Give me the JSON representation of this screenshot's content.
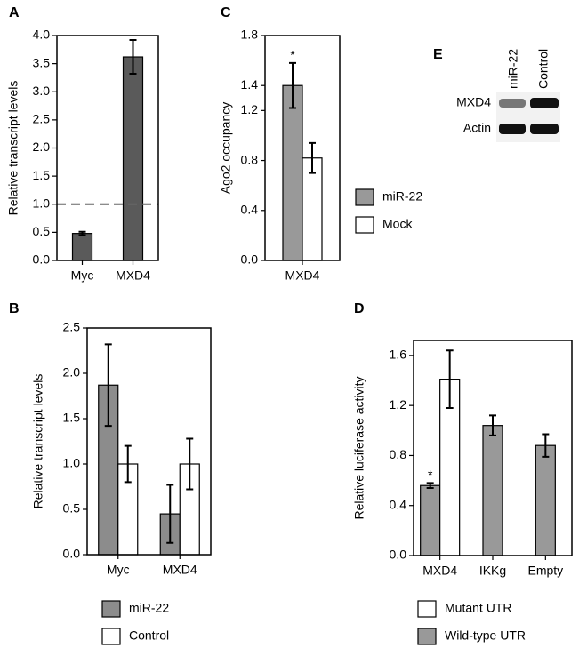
{
  "chart_data": [
    {
      "type": "bar",
      "panel_label": "A",
      "y_label": "Relative transcript levels",
      "categories": [
        "Myc",
        "MXD4"
      ],
      "series": [
        {
          "name": null,
          "color": "#5a5a5a",
          "values": [
            0.48,
            3.62
          ],
          "errors": [
            0.03,
            0.3
          ]
        }
      ],
      "reference_line": 1.0,
      "ylim": [
        0,
        4
      ],
      "yticks": [
        {
          "value": 0,
          "label": "0.0"
        },
        0.5,
        {
          "value": 1,
          "label": "1.0"
        },
        1.5,
        {
          "value": 2,
          "label": "2.0"
        },
        2.5,
        {
          "value": 3,
          "label": "3.0"
        },
        3.5,
        {
          "value": 4,
          "label": "4.0"
        }
      ]
    },
    {
      "type": "bar",
      "panel_label": "B",
      "y_label": "Relative transcript levels",
      "categories": [
        "Myc",
        "MXD4"
      ],
      "series": [
        {
          "name": "miR-22",
          "color": "#8c8c8c",
          "values": [
            1.87,
            0.45
          ],
          "errors": [
            0.45,
            0.32
          ]
        },
        {
          "name": "Control",
          "color": "#ffffff",
          "values": [
            1.0,
            1.0
          ],
          "errors": [
            0.2,
            0.28
          ]
        }
      ],
      "ylim": [
        0,
        2.5
      ],
      "yticks": [
        {
          "value": 0,
          "label": "0.0"
        },
        0.5,
        {
          "value": 1,
          "label": "1.0"
        },
        1.5,
        {
          "value": 2,
          "label": "2.0"
        },
        2.5
      ]
    },
    {
      "type": "bar",
      "panel_label": "C",
      "y_label": "Ago2 occupancy",
      "categories": [
        "MXD4"
      ],
      "series": [
        {
          "name": "miR-22",
          "color": "#999999",
          "values": [
            1.4
          ],
          "errors": [
            0.18
          ]
        },
        {
          "name": "Mock",
          "color": "#ffffff",
          "values": [
            0.82
          ],
          "errors": [
            0.12
          ]
        }
      ],
      "annotations": [
        {
          "text": "*",
          "category": "MXD4",
          "series": "miR-22"
        }
      ],
      "ylim": [
        0,
        1.8
      ],
      "yticks": [
        {
          "value": 0,
          "label": "0.0"
        },
        0.4,
        0.8,
        1.2,
        1.4,
        1.8
      ]
    },
    {
      "type": "bar",
      "panel_label": "D",
      "y_label": "Relative luciferase activity",
      "categories": [
        "MXD4",
        "IKKg",
        "Empty"
      ],
      "series": [
        {
          "name": "Wild-type UTR",
          "color": "#999999",
          "values": [
            0.56,
            1.04,
            0.88
          ],
          "errors": [
            0.02,
            0.08,
            0.09
          ]
        },
        {
          "name": "Mutant UTR",
          "color": "#ffffff",
          "values": [
            1.41,
            null,
            null
          ],
          "errors": [
            0.23,
            null,
            null
          ]
        }
      ],
      "legend_order": [
        "Mutant UTR",
        "Wild-type UTR"
      ],
      "annotations": [
        {
          "text": "*",
          "category": "MXD4",
          "series": "Wild-type UTR"
        }
      ],
      "ylim": [
        0,
        1.72
      ],
      "yticks": [
        {
          "value": 0,
          "label": "0.0"
        },
        0.4,
        0.8,
        1.2,
        1.6
      ]
    }
  ],
  "blot": {
    "panel_label": "E",
    "lanes": [
      "miR-22",
      "Control"
    ],
    "rows": [
      "MXD4",
      "Actin"
    ]
  }
}
